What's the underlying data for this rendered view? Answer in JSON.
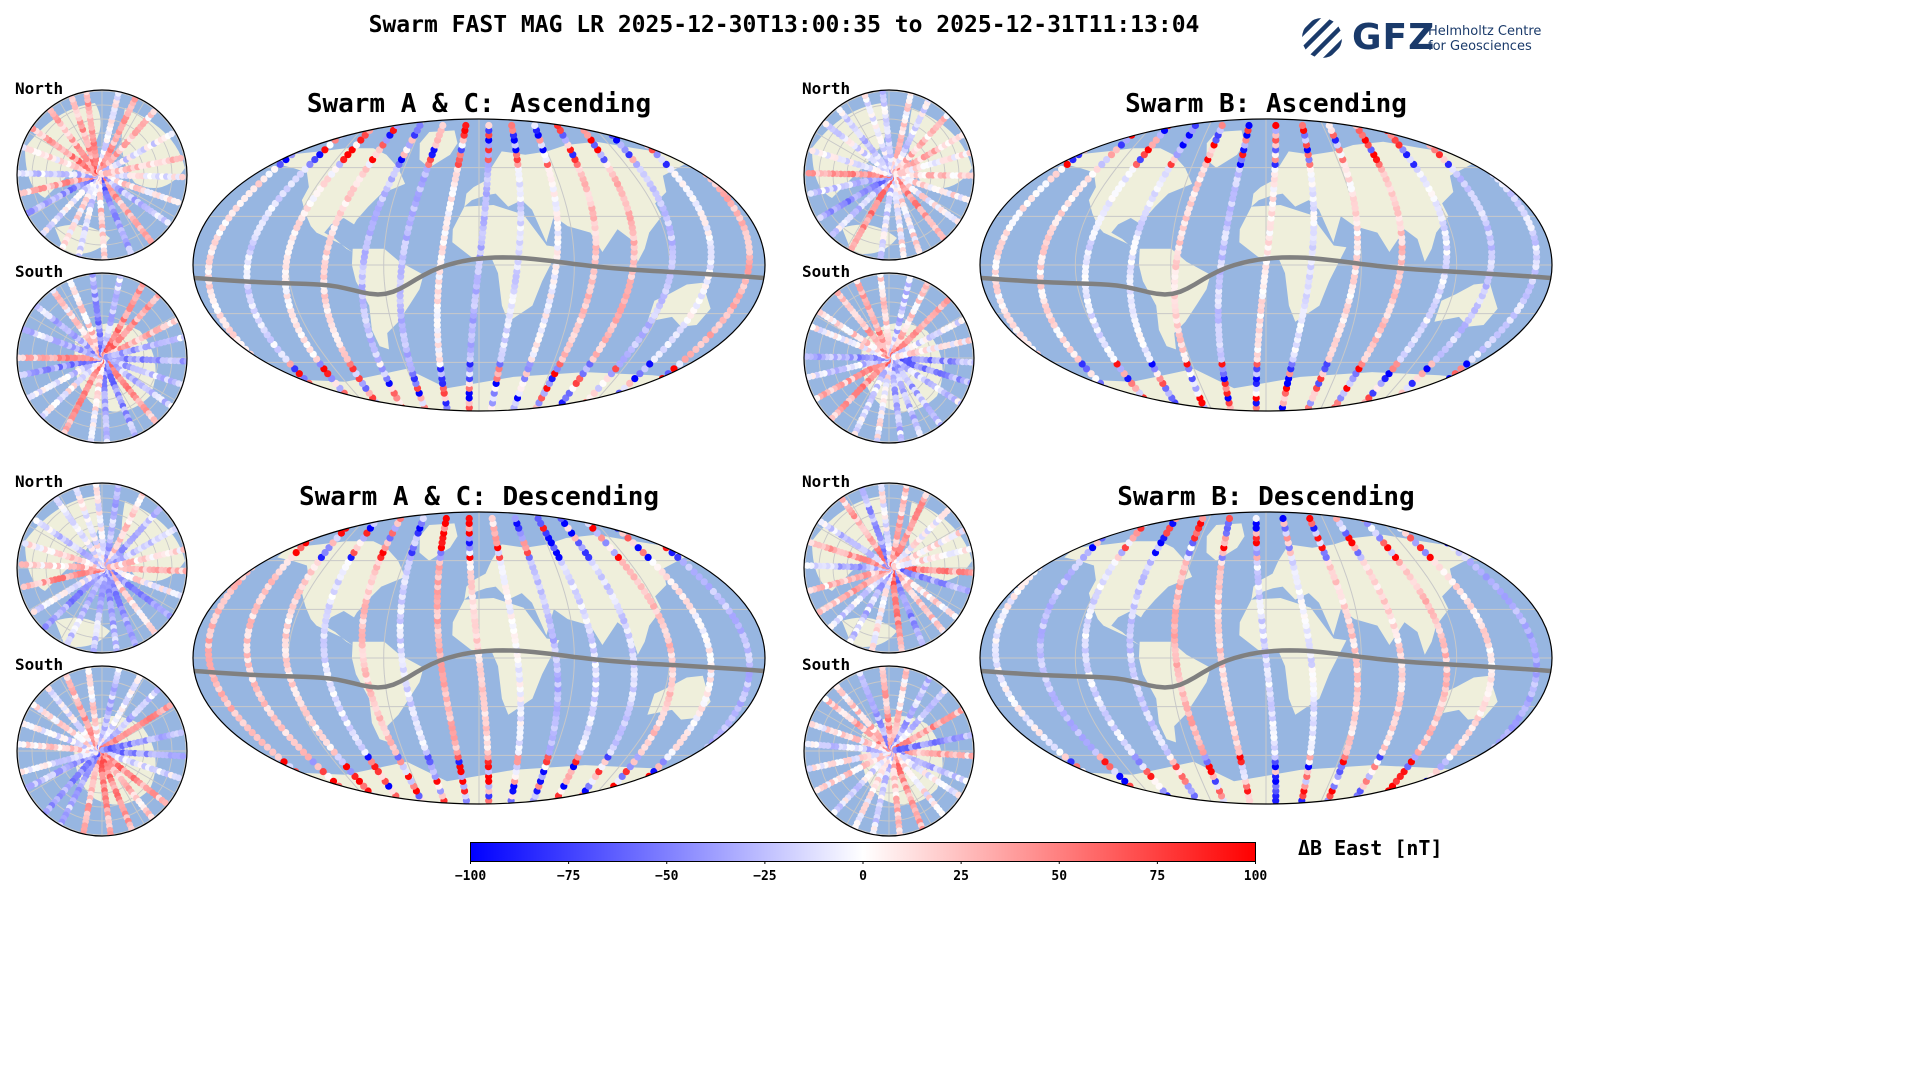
{
  "title": "Swarm FAST MAG LR 2025-12-30T13:00:35 to 2025-12-31T11:13:04",
  "logo": {
    "wordmark": "GFZ",
    "line1": "Helmholtz Centre",
    "line2": "for Geosciences",
    "color": "#1a3a6a"
  },
  "panels": [
    {
      "id": "ac-asc",
      "title": "Swarm A & C: Ascending",
      "north_label": "North",
      "south_label": "South"
    },
    {
      "id": "b-asc",
      "title": "Swarm B: Ascending",
      "north_label": "North",
      "south_label": "South"
    },
    {
      "id": "ac-desc",
      "title": "Swarm A & C: Descending",
      "north_label": "North",
      "south_label": "South"
    },
    {
      "id": "b-desc",
      "title": "Swarm B: Descending",
      "north_label": "North",
      "south_label": "South"
    }
  ],
  "colorbar": {
    "label": "ΔB East [nT]",
    "min": -100,
    "max": 100,
    "ticks": [
      "−100",
      "−75",
      "−50",
      "−25",
      "0",
      "25",
      "50",
      "75",
      "100"
    ],
    "low_color": "#0000ff",
    "mid_color": "#ffffff",
    "high_color": "#ff0000"
  },
  "colors": {
    "ocean": "#97b6e1",
    "land": "#efefdb",
    "grid": "#c8c8c8",
    "dip_equator": "#808080"
  }
}
